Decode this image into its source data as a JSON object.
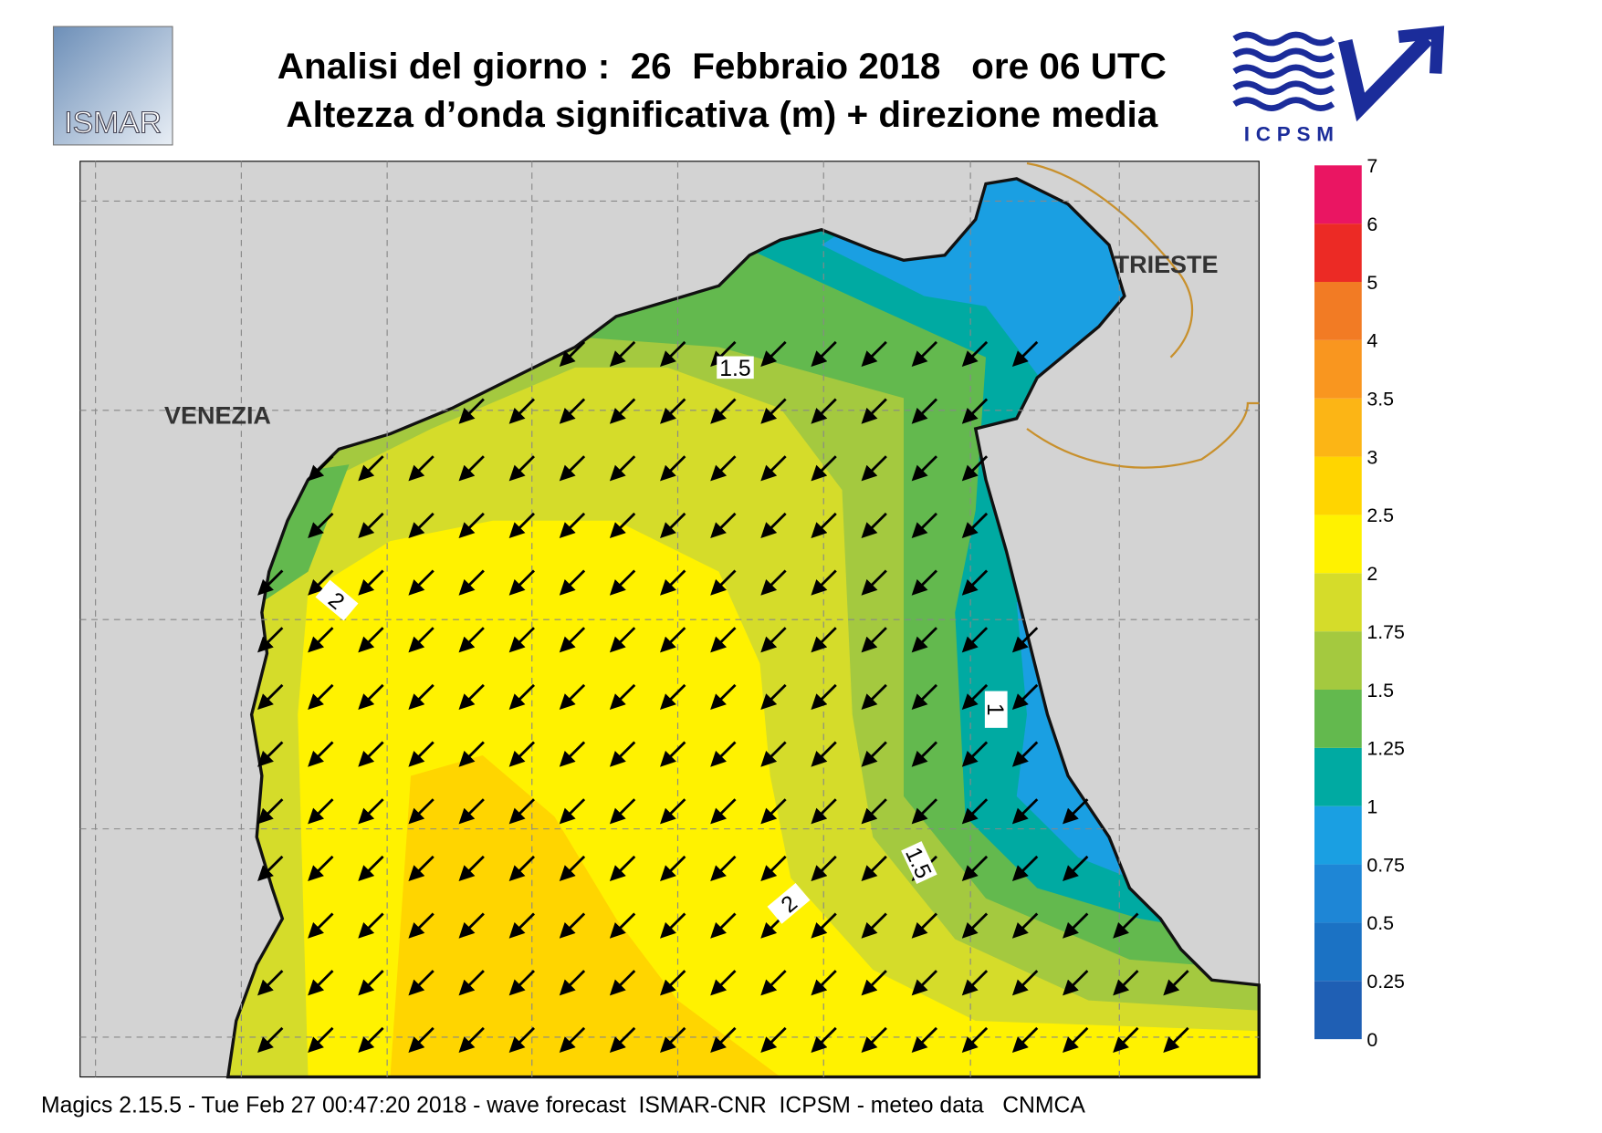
{
  "header": {
    "title": "Analisi del giorno :  26  Febbraio 2018   ore 06 UTC",
    "subtitle": "Altezza d’onda significativa (m) + direzione media",
    "logo_left": "ISMAR",
    "logo_right": "ICPSM"
  },
  "map": {
    "places": [
      "VENEZIA",
      "TRIESTE"
    ],
    "contour_labels": [
      1.5,
      2,
      1,
      1.5,
      2
    ]
  },
  "colorbar": {
    "ticks": [
      0,
      0.25,
      0.5,
      0.75,
      1,
      1.25,
      1.5,
      1.75,
      2,
      2.5,
      3,
      3.5,
      4,
      5,
      6,
      7
    ],
    "colors": [
      "#1f5fb4",
      "#1b72c4",
      "#1e86d6",
      "#1a9fe2",
      "#00aaa2",
      "#63b94e",
      "#a4c93f",
      "#d5dc2a",
      "#fff200",
      "#ffd500",
      "#fcb515",
      "#f9961f",
      "#f27b24",
      "#ec2a25",
      "#ea1562"
    ]
  },
  "footer": "Magics 2.15.5 - Tue Feb 27 00:47:20 2018 - wave forecast  ISMAR-CNR  ICPSM - meteo data   CNMCA"
}
